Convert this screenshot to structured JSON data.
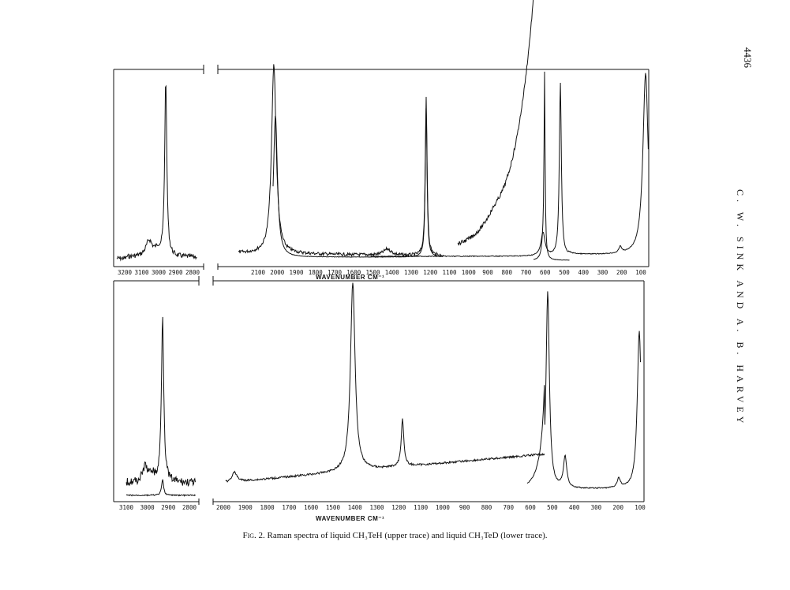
{
  "page_number": "4436",
  "running_head": "C. W. SINK AND A. B. HARVEY",
  "caption": {
    "fig_label": "Fig. 2.",
    "text": "Raman spectra of liquid CH₃TeH (upper trace) and liquid CH₃TeD (lower trace)."
  },
  "chart_data": [
    {
      "type": "line",
      "panel": "upper",
      "title": "",
      "xlabel": "WAVENUMBER CM⁻¹",
      "x_reversed": true,
      "inset_ticks": [
        "3200",
        "3100",
        "3000",
        "2900",
        "2800"
      ],
      "main_ticks": [
        "2100",
        "2000",
        "1900",
        "1800",
        "1700",
        "1600",
        "1500",
        "1400",
        "1300",
        "1200",
        "1100",
        "1000",
        "900",
        "800",
        "700",
        "600",
        "500",
        "400",
        "300",
        "200",
        "100"
      ],
      "peaks_cm1": [
        3010,
        2930,
        2035,
        1420,
        1230,
        620,
        590,
        507,
        185,
        100
      ]
    },
    {
      "type": "line",
      "panel": "lower",
      "title": "",
      "xlabel": "WAVENUMBER CM⁻¹",
      "x_reversed": true,
      "inset_ticks": [
        "3100",
        "3000",
        "2900",
        "2800"
      ],
      "main_ticks": [
        "2000",
        "1900",
        "1800",
        "1700",
        "1600",
        "1500",
        "1400",
        "1300",
        "1200",
        "1100",
        "1000",
        "900",
        "800",
        "700",
        "600",
        "500",
        "400",
        "300",
        "200",
        "100"
      ],
      "peaks_cm1": [
        2940,
        2040,
        1450,
        1220,
        530,
        450,
        190,
        100
      ]
    }
  ]
}
